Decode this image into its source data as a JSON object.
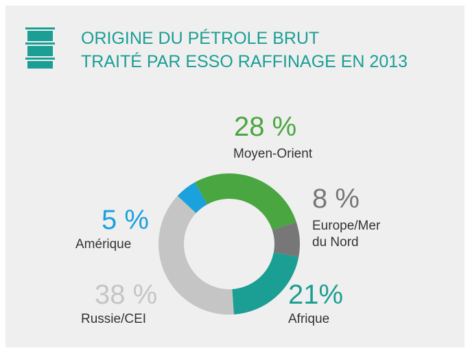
{
  "chart_data": {
    "type": "donut",
    "title": [
      "ORIGINE DU PÉTROLE BRUT",
      "TRAITÉ PAR ESSO RAFFINAGE EN 2013"
    ],
    "categories": [
      "Moyen-Orient",
      "Europe/Mer du Nord",
      "Afrique",
      "Russie/CEI",
      "Amérique"
    ],
    "values": [
      28,
      8,
      21,
      38,
      5
    ],
    "value_labels": [
      "28 %",
      "8 %",
      "21%",
      "38 %",
      "5 %"
    ],
    "colors": [
      "#4aa640",
      "#777777",
      "#1b9e94",
      "#c5c5c5",
      "#1ba1dc"
    ]
  }
}
